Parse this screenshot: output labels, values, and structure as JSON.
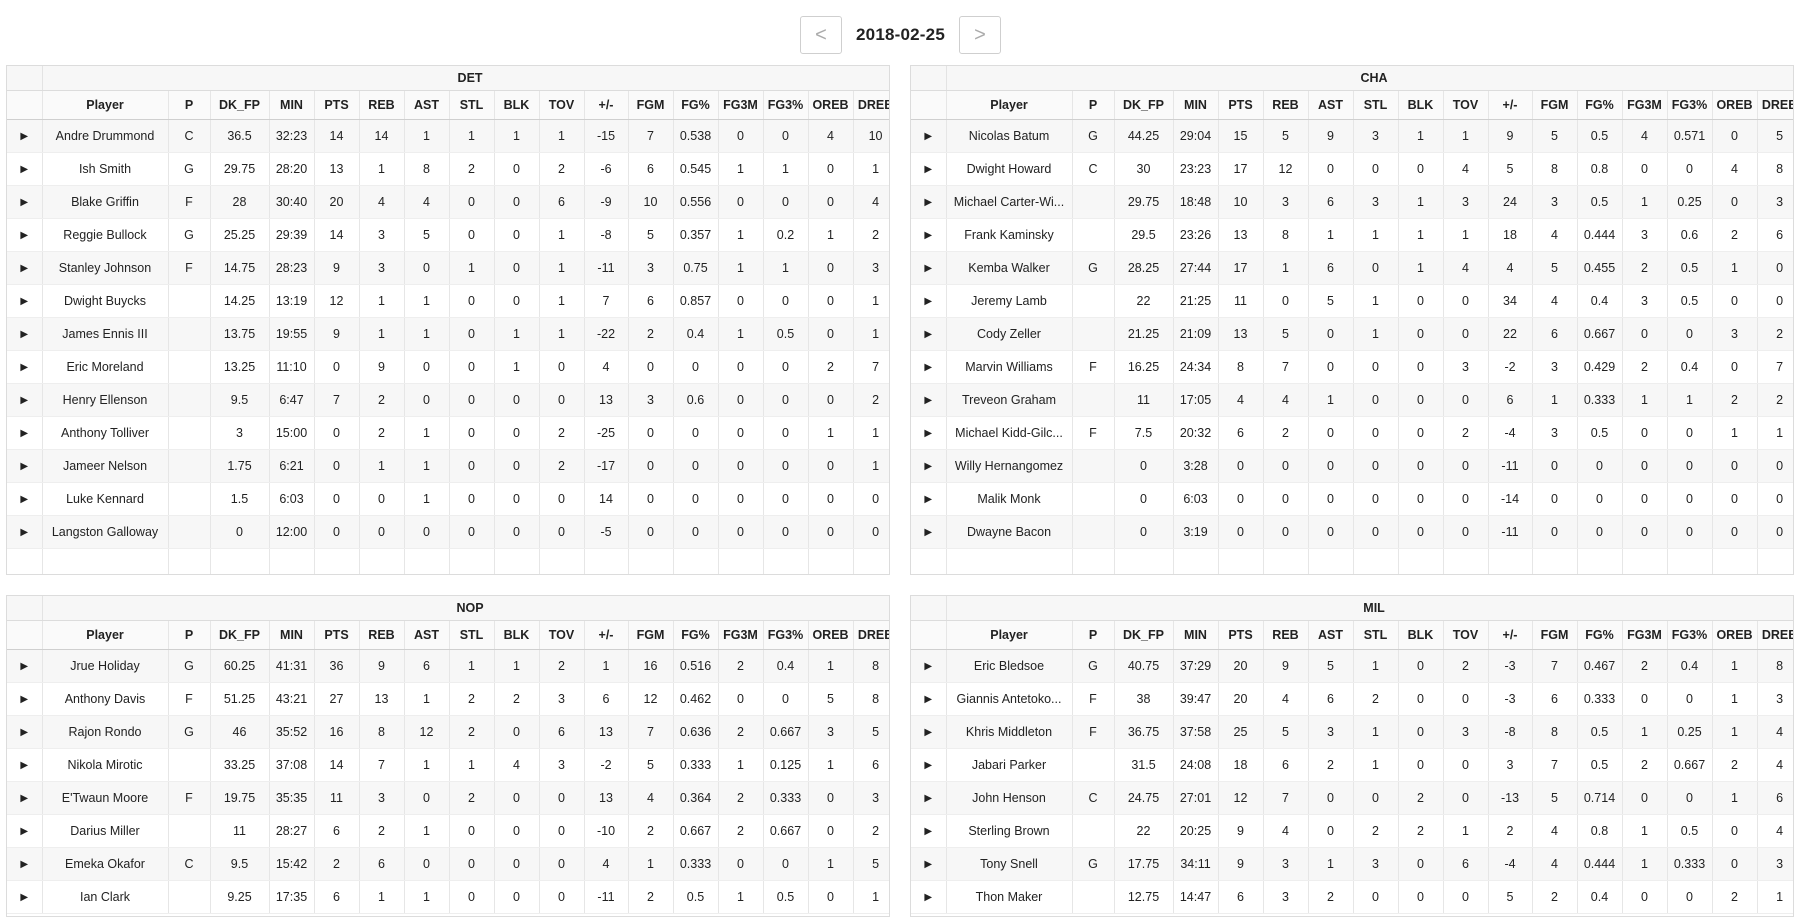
{
  "nav": {
    "prev_label": "<",
    "next_label": ">",
    "date": "2018-02-25"
  },
  "columns": [
    "Player",
    "P",
    "DK_FP",
    "MIN",
    "PTS",
    "REB",
    "AST",
    "STL",
    "BLK",
    "TOV",
    "+/-",
    "FGM",
    "FG%",
    "FG3M",
    "FG3%",
    "OREB",
    "DREB"
  ],
  "teams": [
    {
      "name": "DET",
      "rows": [
        [
          "Andre Drummond",
          "C",
          "36.5",
          "32:23",
          "14",
          "14",
          "1",
          "1",
          "1",
          "1",
          "-15",
          "7",
          "0.538",
          "0",
          "0",
          "4",
          "10"
        ],
        [
          "Ish Smith",
          "G",
          "29.75",
          "28:20",
          "13",
          "1",
          "8",
          "2",
          "0",
          "2",
          "-6",
          "6",
          "0.545",
          "1",
          "1",
          "0",
          "1"
        ],
        [
          "Blake Griffin",
          "F",
          "28",
          "30:40",
          "20",
          "4",
          "4",
          "0",
          "0",
          "6",
          "-9",
          "10",
          "0.556",
          "0",
          "0",
          "0",
          "4"
        ],
        [
          "Reggie Bullock",
          "G",
          "25.25",
          "29:39",
          "14",
          "3",
          "5",
          "0",
          "0",
          "1",
          "-8",
          "5",
          "0.357",
          "1",
          "0.2",
          "1",
          "2"
        ],
        [
          "Stanley Johnson",
          "F",
          "14.75",
          "28:23",
          "9",
          "3",
          "0",
          "1",
          "0",
          "1",
          "-11",
          "3",
          "0.75",
          "1",
          "1",
          "0",
          "3"
        ],
        [
          "Dwight Buycks",
          "",
          "14.25",
          "13:19",
          "12",
          "1",
          "1",
          "0",
          "0",
          "1",
          "7",
          "6",
          "0.857",
          "0",
          "0",
          "0",
          "1"
        ],
        [
          "James Ennis III",
          "",
          "13.75",
          "19:55",
          "9",
          "1",
          "1",
          "0",
          "1",
          "1",
          "-22",
          "2",
          "0.4",
          "1",
          "0.5",
          "0",
          "1"
        ],
        [
          "Eric Moreland",
          "",
          "13.25",
          "11:10",
          "0",
          "9",
          "0",
          "0",
          "1",
          "0",
          "4",
          "0",
          "0",
          "0",
          "0",
          "2",
          "7"
        ],
        [
          "Henry Ellenson",
          "",
          "9.5",
          "6:47",
          "7",
          "2",
          "0",
          "0",
          "0",
          "0",
          "13",
          "3",
          "0.6",
          "0",
          "0",
          "0",
          "2"
        ],
        [
          "Anthony Tolliver",
          "",
          "3",
          "15:00",
          "0",
          "2",
          "1",
          "0",
          "0",
          "2",
          "-25",
          "0",
          "0",
          "0",
          "0",
          "1",
          "1"
        ],
        [
          "Jameer Nelson",
          "",
          "1.75",
          "6:21",
          "0",
          "1",
          "1",
          "0",
          "0",
          "2",
          "-17",
          "0",
          "0",
          "0",
          "0",
          "0",
          "1"
        ],
        [
          "Luke Kennard",
          "",
          "1.5",
          "6:03",
          "0",
          "0",
          "1",
          "0",
          "0",
          "0",
          "14",
          "0",
          "0",
          "0",
          "0",
          "0",
          "0"
        ],
        [
          "Langston Galloway",
          "",
          "0",
          "12:00",
          "0",
          "0",
          "0",
          "0",
          "0",
          "0",
          "-5",
          "0",
          "0",
          "0",
          "0",
          "0",
          "0"
        ]
      ]
    },
    {
      "name": "CHA",
      "rows": [
        [
          "Nicolas Batum",
          "G",
          "44.25",
          "29:04",
          "15",
          "5",
          "9",
          "3",
          "1",
          "1",
          "9",
          "5",
          "0.5",
          "4",
          "0.571",
          "0",
          "5"
        ],
        [
          "Dwight Howard",
          "C",
          "30",
          "23:23",
          "17",
          "12",
          "0",
          "0",
          "0",
          "4",
          "5",
          "8",
          "0.8",
          "0",
          "0",
          "4",
          "8"
        ],
        [
          "Michael Carter-Wi...",
          "",
          "29.75",
          "18:48",
          "10",
          "3",
          "6",
          "3",
          "1",
          "3",
          "24",
          "3",
          "0.5",
          "1",
          "0.25",
          "0",
          "3"
        ],
        [
          "Frank Kaminsky",
          "",
          "29.5",
          "23:26",
          "13",
          "8",
          "1",
          "1",
          "1",
          "1",
          "18",
          "4",
          "0.444",
          "3",
          "0.6",
          "2",
          "6"
        ],
        [
          "Kemba Walker",
          "G",
          "28.25",
          "27:44",
          "17",
          "1",
          "6",
          "0",
          "1",
          "4",
          "4",
          "5",
          "0.455",
          "2",
          "0.5",
          "1",
          "0"
        ],
        [
          "Jeremy Lamb",
          "",
          "22",
          "21:25",
          "11",
          "0",
          "5",
          "1",
          "0",
          "0",
          "34",
          "4",
          "0.4",
          "3",
          "0.5",
          "0",
          "0"
        ],
        [
          "Cody Zeller",
          "",
          "21.25",
          "21:09",
          "13",
          "5",
          "0",
          "1",
          "0",
          "0",
          "22",
          "6",
          "0.667",
          "0",
          "0",
          "3",
          "2"
        ],
        [
          "Marvin Williams",
          "F",
          "16.25",
          "24:34",
          "8",
          "7",
          "0",
          "0",
          "0",
          "3",
          "-2",
          "3",
          "0.429",
          "2",
          "0.4",
          "0",
          "7"
        ],
        [
          "Treveon Graham",
          "",
          "11",
          "17:05",
          "4",
          "4",
          "1",
          "0",
          "0",
          "0",
          "6",
          "1",
          "0.333",
          "1",
          "1",
          "2",
          "2"
        ],
        [
          "Michael Kidd-Gilc...",
          "F",
          "7.5",
          "20:32",
          "6",
          "2",
          "0",
          "0",
          "0",
          "2",
          "-4",
          "3",
          "0.5",
          "0",
          "0",
          "1",
          "1"
        ],
        [
          "Willy Hernangomez",
          "",
          "0",
          "3:28",
          "0",
          "0",
          "0",
          "0",
          "0",
          "0",
          "-11",
          "0",
          "0",
          "0",
          "0",
          "0",
          "0"
        ],
        [
          "Malik Monk",
          "",
          "0",
          "6:03",
          "0",
          "0",
          "0",
          "0",
          "0",
          "0",
          "-14",
          "0",
          "0",
          "0",
          "0",
          "0",
          "0"
        ],
        [
          "Dwayne Bacon",
          "",
          "0",
          "3:19",
          "0",
          "0",
          "0",
          "0",
          "0",
          "0",
          "-11",
          "0",
          "0",
          "0",
          "0",
          "0",
          "0"
        ]
      ]
    },
    {
      "name": "NOP",
      "rows": [
        [
          "Jrue Holiday",
          "G",
          "60.25",
          "41:31",
          "36",
          "9",
          "6",
          "1",
          "1",
          "2",
          "1",
          "16",
          "0.516",
          "2",
          "0.4",
          "1",
          "8"
        ],
        [
          "Anthony Davis",
          "F",
          "51.25",
          "43:21",
          "27",
          "13",
          "1",
          "2",
          "2",
          "3",
          "6",
          "12",
          "0.462",
          "0",
          "0",
          "5",
          "8"
        ],
        [
          "Rajon Rondo",
          "G",
          "46",
          "35:52",
          "16",
          "8",
          "12",
          "2",
          "0",
          "6",
          "13",
          "7",
          "0.636",
          "2",
          "0.667",
          "3",
          "5"
        ],
        [
          "Nikola Mirotic",
          "",
          "33.25",
          "37:08",
          "14",
          "7",
          "1",
          "1",
          "4",
          "3",
          "-2",
          "5",
          "0.333",
          "1",
          "0.125",
          "1",
          "6"
        ],
        [
          "E'Twaun Moore",
          "F",
          "19.75",
          "35:35",
          "11",
          "3",
          "0",
          "2",
          "0",
          "0",
          "13",
          "4",
          "0.364",
          "2",
          "0.333",
          "0",
          "3"
        ],
        [
          "Darius Miller",
          "",
          "11",
          "28:27",
          "6",
          "2",
          "1",
          "0",
          "0",
          "0",
          "-10",
          "2",
          "0.667",
          "2",
          "0.667",
          "0",
          "2"
        ],
        [
          "Emeka Okafor",
          "C",
          "9.5",
          "15:42",
          "2",
          "6",
          "0",
          "0",
          "0",
          "0",
          "4",
          "1",
          "0.333",
          "0",
          "0",
          "1",
          "5"
        ],
        [
          "Ian Clark",
          "",
          "9.25",
          "17:35",
          "6",
          "1",
          "1",
          "0",
          "0",
          "0",
          "-11",
          "2",
          "0.5",
          "1",
          "0.5",
          "0",
          "1"
        ]
      ]
    },
    {
      "name": "MIL",
      "rows": [
        [
          "Eric Bledsoe",
          "G",
          "40.75",
          "37:29",
          "20",
          "9",
          "5",
          "1",
          "0",
          "2",
          "-3",
          "7",
          "0.467",
          "2",
          "0.4",
          "1",
          "8"
        ],
        [
          "Giannis Antetoko...",
          "F",
          "38",
          "39:47",
          "20",
          "4",
          "6",
          "2",
          "0",
          "0",
          "-3",
          "6",
          "0.333",
          "0",
          "0",
          "1",
          "3"
        ],
        [
          "Khris Middleton",
          "F",
          "36.75",
          "37:58",
          "25",
          "5",
          "3",
          "1",
          "0",
          "3",
          "-8",
          "8",
          "0.5",
          "1",
          "0.25",
          "1",
          "4"
        ],
        [
          "Jabari Parker",
          "",
          "31.5",
          "24:08",
          "18",
          "6",
          "2",
          "1",
          "0",
          "0",
          "3",
          "7",
          "0.5",
          "2",
          "0.667",
          "2",
          "4"
        ],
        [
          "John Henson",
          "C",
          "24.75",
          "27:01",
          "12",
          "7",
          "0",
          "0",
          "2",
          "0",
          "-13",
          "5",
          "0.714",
          "0",
          "0",
          "1",
          "6"
        ],
        [
          "Sterling Brown",
          "",
          "22",
          "20:25",
          "9",
          "4",
          "0",
          "2",
          "2",
          "1",
          "2",
          "4",
          "0.8",
          "1",
          "0.5",
          "0",
          "4"
        ],
        [
          "Tony Snell",
          "G",
          "17.75",
          "34:11",
          "9",
          "3",
          "1",
          "3",
          "0",
          "6",
          "-4",
          "4",
          "0.444",
          "1",
          "0.333",
          "0",
          "3"
        ],
        [
          "Thon Maker",
          "",
          "12.75",
          "14:47",
          "6",
          "3",
          "2",
          "0",
          "0",
          "0",
          "5",
          "2",
          "0.4",
          "0",
          "0",
          "2",
          "1"
        ]
      ]
    }
  ],
  "icons": {
    "row_expander": "caret-right-icon",
    "row_expander_glyph": "▶"
  }
}
